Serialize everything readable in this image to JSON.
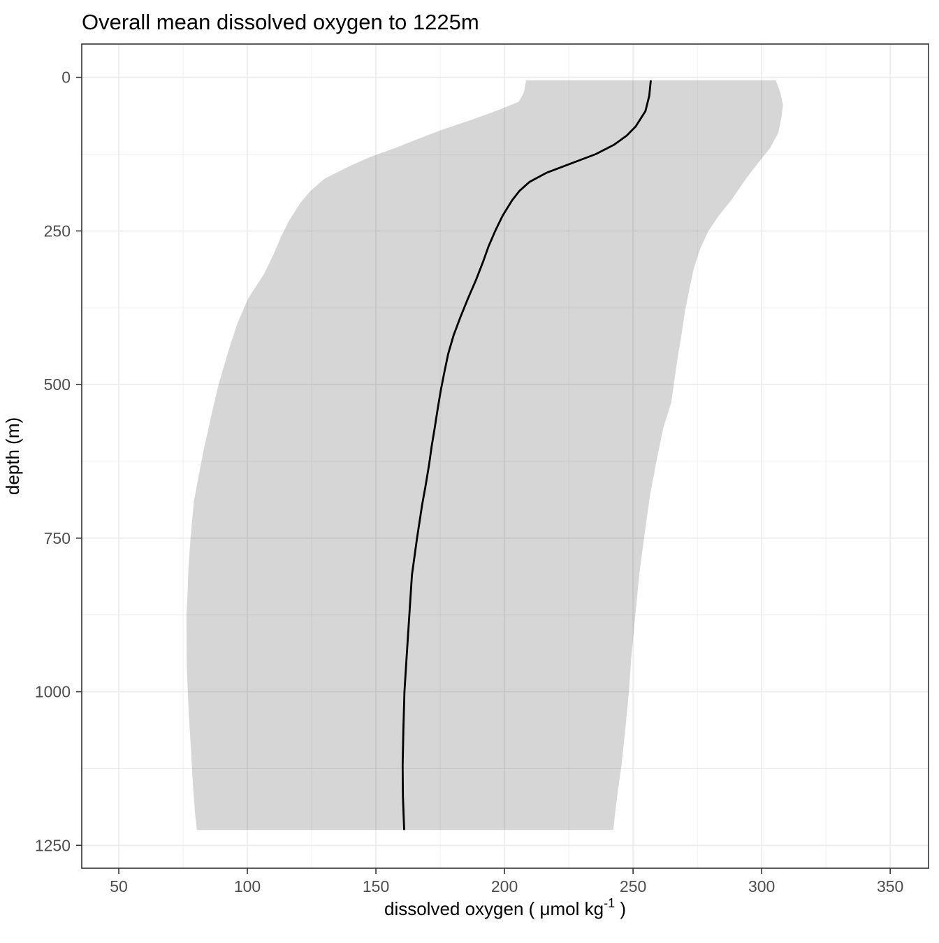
{
  "chart_data": {
    "type": "line",
    "title": "Overall mean dissolved oxygen to 1225m",
    "xlabel_parts": {
      "main": "dissolved oxygen ( μmol kg",
      "sup": "-1",
      "end": " )"
    },
    "ylabel": "depth (m)",
    "x_axis": {
      "label_plain": "dissolved oxygen ( μmol kg-1 )",
      "ticks": [
        50,
        100,
        150,
        200,
        250,
        300,
        350
      ],
      "minor_ticks": [
        75,
        125,
        175,
        225,
        275,
        325
      ],
      "lim": [
        35.6,
        364.9
      ]
    },
    "y_axis": {
      "label_plain": "depth (m)",
      "ticks": [
        0,
        250,
        500,
        750,
        1000,
        1250
      ],
      "minor_ticks": [
        125,
        375,
        625,
        875,
        1125
      ],
      "lim": [
        -54.2,
        1287.2
      ],
      "orientation": "depth-increases-downward"
    },
    "grid": "on",
    "legend": "none",
    "series": [
      {
        "name": "overall mean dissolved oxygen",
        "role": "line",
        "color": "#000000",
        "width": 2.8,
        "points": [
          [
            5,
            256.9
          ],
          [
            30,
            256.3
          ],
          [
            55,
            254.8
          ],
          [
            80,
            251.0
          ],
          [
            95,
            247.5
          ],
          [
            110,
            242.5
          ],
          [
            125,
            235.5
          ],
          [
            140,
            226.0
          ],
          [
            155,
            216.5
          ],
          [
            170,
            209.8
          ],
          [
            185,
            205.8
          ],
          [
            200,
            203.0
          ],
          [
            225,
            199.3
          ],
          [
            250,
            196.4
          ],
          [
            275,
            193.8
          ],
          [
            300,
            191.7
          ],
          [
            330,
            188.9
          ],
          [
            360,
            185.8
          ],
          [
            390,
            182.9
          ],
          [
            420,
            180.2
          ],
          [
            450,
            178.1
          ],
          [
            480,
            176.6
          ],
          [
            510,
            175.2
          ],
          [
            540,
            174.0
          ],
          [
            570,
            172.9
          ],
          [
            600,
            171.7
          ],
          [
            630,
            170.7
          ],
          [
            665,
            169.3
          ],
          [
            695,
            168.0
          ],
          [
            750,
            166.0
          ],
          [
            810,
            164.0
          ],
          [
            875,
            163.0
          ],
          [
            940,
            162.0
          ],
          [
            1000,
            161.1
          ],
          [
            1060,
            160.7
          ],
          [
            1120,
            160.4
          ],
          [
            1170,
            160.5
          ],
          [
            1225,
            161.0
          ]
        ]
      },
      {
        "name": "dissolved oxygen range ribbon",
        "role": "ribbon",
        "fill": "rgba(0,0,0,0.16)",
        "lower": [
          [
            5,
            208.4
          ],
          [
            25,
            207.5
          ],
          [
            40,
            205.5
          ],
          [
            55,
            196.5
          ],
          [
            70,
            186.5
          ],
          [
            85,
            176.0
          ],
          [
            100,
            166.5
          ],
          [
            115,
            157.5
          ],
          [
            130,
            147.5
          ],
          [
            145,
            139.5
          ],
          [
            165,
            130.0
          ],
          [
            185,
            124.5
          ],
          [
            205,
            120.5
          ],
          [
            235,
            116.0
          ],
          [
            260,
            113.0
          ],
          [
            290,
            110.0
          ],
          [
            320,
            106.5
          ],
          [
            360,
            100.3
          ],
          [
            400,
            96.2
          ],
          [
            440,
            93.0
          ],
          [
            500,
            88.8
          ],
          [
            550,
            86.0
          ],
          [
            605,
            83.1
          ],
          [
            650,
            81.0
          ],
          [
            690,
            79.2
          ],
          [
            750,
            77.9
          ],
          [
            800,
            77.1
          ],
          [
            845,
            76.7
          ],
          [
            875,
            76.3
          ],
          [
            955,
            76.4
          ],
          [
            1035,
            77.2
          ],
          [
            1095,
            78.1
          ],
          [
            1150,
            78.8
          ],
          [
            1200,
            79.7
          ],
          [
            1225,
            80.4
          ]
        ],
        "upper": [
          [
            5,
            305.5
          ],
          [
            25,
            307.3
          ],
          [
            45,
            308.3
          ],
          [
            65,
            307.7
          ],
          [
            90,
            306.5
          ],
          [
            115,
            303.3
          ],
          [
            140,
            298.5
          ],
          [
            165,
            293.9
          ],
          [
            200,
            288.2
          ],
          [
            225,
            283.4
          ],
          [
            250,
            279.3
          ],
          [
            280,
            276.0
          ],
          [
            310,
            273.7
          ],
          [
            345,
            271.9
          ],
          [
            380,
            270.2
          ],
          [
            420,
            268.8
          ],
          [
            455,
            267.4
          ],
          [
            490,
            266.2
          ],
          [
            530,
            264.8
          ],
          [
            570,
            261.8
          ],
          [
            625,
            259.1
          ],
          [
            680,
            256.6
          ],
          [
            750,
            254.3
          ],
          [
            806,
            252.5
          ],
          [
            875,
            250.9
          ],
          [
            945,
            249.3
          ],
          [
            1000,
            248.4
          ],
          [
            1060,
            247.0
          ],
          [
            1120,
            245.5
          ],
          [
            1170,
            243.8
          ],
          [
            1225,
            242.3
          ]
        ]
      }
    ],
    "style": {
      "background": "#ffffff",
      "panel_background": "#ffffff",
      "panel_border": "#333333",
      "grid_major": "#ebebeb",
      "grid_minor": "#ebebeb",
      "tick_color": "#333333",
      "tick_label_color": "#4d4d4d",
      "title_color": "#000000"
    }
  }
}
